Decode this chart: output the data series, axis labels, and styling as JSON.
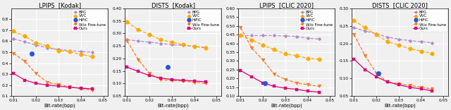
{
  "plots": [
    {
      "title": "LPIPS  [Kodak]",
      "xlabel": "Bit-rate(bpp)",
      "ylim": [
        0.1,
        0.9
      ],
      "yticks": [
        0.1,
        0.2,
        0.3,
        0.4,
        0.5,
        0.6,
        0.7,
        0.8
      ],
      "xlim": [
        0.009,
        0.052
      ],
      "xticks": [
        0.01,
        0.02,
        0.03,
        0.04,
        0.05
      ],
      "series": [
        {
          "label": "BPG",
          "color": "#b088cc",
          "marker": "D",
          "linestyle": "--",
          "x": [
            0.01,
            0.015,
            0.02,
            0.025,
            0.03,
            0.035,
            0.04,
            0.045
          ],
          "y": [
            0.62,
            0.595,
            0.565,
            0.54,
            0.525,
            0.515,
            0.505,
            0.5
          ],
          "markersize": 2.5
        },
        {
          "label": "VVC",
          "color": "#ffaa00",
          "marker": "o",
          "linestyle": "--",
          "x": [
            0.01,
            0.015,
            0.02,
            0.025,
            0.03,
            0.035,
            0.04,
            0.045
          ],
          "y": [
            0.69,
            0.645,
            0.585,
            0.555,
            0.515,
            0.505,
            0.48,
            0.46
          ],
          "markersize": 4.0
        },
        {
          "label": "HiFiC",
          "color": "#2255dd",
          "marker": "o",
          "linestyle": "none",
          "x": [
            0.018
          ],
          "y": [
            0.49
          ],
          "markersize": 4.5
        },
        {
          "label": "W/o Fine-tune",
          "color": "#ff7722",
          "marker": "v",
          "linestyle": "--",
          "x": [
            0.01,
            0.015,
            0.02,
            0.025,
            0.03,
            0.035,
            0.04,
            0.045
          ],
          "y": [
            0.49,
            0.415,
            0.305,
            0.225,
            0.205,
            0.185,
            0.165,
            0.155
          ],
          "markersize": 3.5
        },
        {
          "label": "Ours",
          "color": "#dd0077",
          "marker": "s",
          "linestyle": "-",
          "x": [
            0.01,
            0.015,
            0.02,
            0.025,
            0.03,
            0.035,
            0.04,
            0.045
          ],
          "y": [
            0.305,
            0.245,
            0.215,
            0.2,
            0.19,
            0.18,
            0.172,
            0.165
          ],
          "markersize": 3.0
        }
      ]
    },
    {
      "title": "DISTS  [Kodak]",
      "xlabel": "Bit-rate(bpp)",
      "ylim": [
        0.05,
        0.4
      ],
      "yticks": [
        0.05,
        0.1,
        0.15,
        0.2,
        0.25,
        0.3,
        0.35,
        0.4
      ],
      "xlim": [
        0.009,
        0.052
      ],
      "xticks": [
        0.01,
        0.02,
        0.03,
        0.04,
        0.05
      ],
      "series": [
        {
          "label": "BPG",
          "color": "#b088cc",
          "marker": "D",
          "linestyle": "--",
          "x": [
            0.01,
            0.015,
            0.02,
            0.025,
            0.03,
            0.035,
            0.04,
            0.045
          ],
          "y": [
            0.275,
            0.27,
            0.265,
            0.26,
            0.255,
            0.252,
            0.248,
            0.245
          ],
          "markersize": 2.5
        },
        {
          "label": "VVC",
          "color": "#ffaa00",
          "marker": "o",
          "linestyle": "--",
          "x": [
            0.01,
            0.015,
            0.02,
            0.025,
            0.03,
            0.035,
            0.04,
            0.045
          ],
          "y": [
            0.345,
            0.315,
            0.295,
            0.275,
            0.265,
            0.255,
            0.248,
            0.242
          ],
          "markersize": 4.0
        },
        {
          "label": "HiFiC",
          "color": "#2255dd",
          "marker": "o",
          "linestyle": "none",
          "x": [
            0.028
          ],
          "y": [
            0.165
          ],
          "markersize": 4.5
        },
        {
          "label": "W/o Fine-tune",
          "color": "#ff7722",
          "marker": "v",
          "linestyle": "--",
          "x": [
            0.01,
            0.015,
            0.02,
            0.025,
            0.03,
            0.035,
            0.04,
            0.045
          ],
          "y": [
            0.27,
            0.195,
            0.14,
            0.115,
            0.112,
            0.11,
            0.105,
            0.1
          ],
          "markersize": 3.5
        },
        {
          "label": "Ours",
          "color": "#dd0077",
          "marker": "s",
          "linestyle": "-",
          "x": [
            0.01,
            0.015,
            0.02,
            0.025,
            0.03,
            0.035,
            0.04,
            0.045
          ],
          "y": [
            0.165,
            0.148,
            0.132,
            0.122,
            0.116,
            0.113,
            0.11,
            0.107
          ],
          "markersize": 3.0
        }
      ]
    },
    {
      "title": "LPIPS  [CLIC 2020]",
      "xlabel": "Bit-rate(bpp)",
      "ylim": [
        0.1,
        0.6
      ],
      "yticks": [
        0.1,
        0.15,
        0.2,
        0.25,
        0.3,
        0.35,
        0.4,
        0.45,
        0.5,
        0.55,
        0.6
      ],
      "xlim": [
        0.009,
        0.052
      ],
      "xticks": [
        0.01,
        0.02,
        0.03,
        0.04,
        0.05
      ],
      "series": [
        {
          "label": "BPG",
          "color": "#b088cc",
          "marker": "D",
          "linestyle": "--",
          "x": [
            0.01,
            0.015,
            0.02,
            0.025,
            0.03,
            0.035,
            0.04,
            0.045
          ],
          "y": [
            0.445,
            0.445,
            0.445,
            0.445,
            0.443,
            0.44,
            0.43,
            0.425
          ],
          "markersize": 2.5
        },
        {
          "label": "VVC",
          "color": "#ffaa00",
          "marker": "o",
          "linestyle": "--",
          "x": [
            0.01,
            0.015,
            0.02,
            0.025,
            0.03,
            0.035,
            0.04,
            0.045
          ],
          "y": [
            0.445,
            0.42,
            0.39,
            0.365,
            0.34,
            0.33,
            0.315,
            0.31
          ],
          "markersize": 4.0
        },
        {
          "label": "HiFiC",
          "color": "#2255dd",
          "marker": "o",
          "linestyle": "none",
          "x": [
            0.021
          ],
          "y": [
            0.175
          ],
          "markersize": 4.5
        },
        {
          "label": "W/o Fine-tune",
          "color": "#ff7722",
          "marker": "v",
          "linestyle": "--",
          "x": [
            0.01,
            0.015,
            0.02,
            0.025,
            0.03,
            0.035,
            0.04,
            0.045
          ],
          "y": [
            0.49,
            0.375,
            0.305,
            0.225,
            0.195,
            0.175,
            0.165,
            0.155
          ],
          "markersize": 3.5
        },
        {
          "label": "Ours",
          "color": "#dd0077",
          "marker": "s",
          "linestyle": "-",
          "x": [
            0.01,
            0.015,
            0.02,
            0.025,
            0.03,
            0.035,
            0.04,
            0.045
          ],
          "y": [
            0.245,
            0.21,
            0.175,
            0.155,
            0.145,
            0.138,
            0.128,
            0.122
          ],
          "markersize": 3.0
        }
      ]
    },
    {
      "title": "DISTS  [CLIC 2020]",
      "xlabel": "Bit-rate(bpp)",
      "ylim": [
        0.05,
        0.3
      ],
      "yticks": [
        0.05,
        0.1,
        0.15,
        0.2,
        0.25,
        0.3
      ],
      "xlim": [
        0.009,
        0.052
      ],
      "xticks": [
        0.01,
        0.02,
        0.03,
        0.04,
        0.05
      ],
      "series": [
        {
          "label": "BPG",
          "color": "#b088cc",
          "marker": "D",
          "linestyle": "--",
          "x": [
            0.01,
            0.015,
            0.02,
            0.025,
            0.03,
            0.035,
            0.04,
            0.045
          ],
          "y": [
            0.245,
            0.235,
            0.228,
            0.218,
            0.212,
            0.208,
            0.205,
            0.202
          ],
          "markersize": 2.5
        },
        {
          "label": "VVC",
          "color": "#ffaa00",
          "marker": "o",
          "linestyle": "--",
          "x": [
            0.01,
            0.015,
            0.02,
            0.025,
            0.03,
            0.035,
            0.04,
            0.045
          ],
          "y": [
            0.265,
            0.245,
            0.225,
            0.205,
            0.195,
            0.185,
            0.178,
            0.172
          ],
          "markersize": 4.0
        },
        {
          "label": "HiFiC",
          "color": "#2255dd",
          "marker": "o",
          "linestyle": "none",
          "x": [
            0.021
          ],
          "y": [
            0.115
          ],
          "markersize": 4.5
        },
        {
          "label": "W/o Fine-tune",
          "color": "#ff7722",
          "marker": "v",
          "linestyle": "--",
          "x": [
            0.01,
            0.015,
            0.02,
            0.025,
            0.03,
            0.035,
            0.04,
            0.045
          ],
          "y": [
            0.225,
            0.165,
            0.115,
            0.09,
            0.085,
            0.08,
            0.075,
            0.07
          ],
          "markersize": 3.5
        },
        {
          "label": "Ours",
          "color": "#dd0077",
          "marker": "s",
          "linestyle": "-",
          "x": [
            0.01,
            0.015,
            0.02,
            0.025,
            0.03,
            0.035,
            0.04,
            0.045
          ],
          "y": [
            0.155,
            0.125,
            0.105,
            0.09,
            0.082,
            0.075,
            0.07,
            0.065
          ],
          "markersize": 3.0
        }
      ]
    }
  ],
  "bg_color": "#f0f0f0",
  "grid_color": "white",
  "legend_fontsize": 4.0,
  "axis_fontsize": 5.0,
  "title_fontsize": 6.0,
  "tick_fontsize": 4.2,
  "line_width": 0.9
}
